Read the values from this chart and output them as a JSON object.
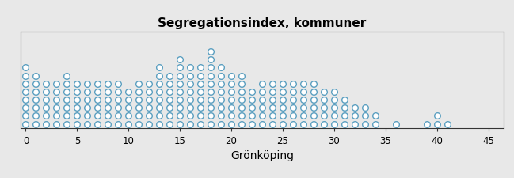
{
  "title": "Segregationsindex, kommuner",
  "xlabel": "Grönköping",
  "background_color": "#e8e8e8",
  "dot_facecolor": "#ffffff",
  "dot_edgecolor": "#5b9fc0",
  "xlim": [
    -0.5,
    46.5
  ],
  "ylim": [
    0,
    12
  ],
  "xticks": [
    0,
    5,
    10,
    15,
    20,
    25,
    30,
    35,
    40,
    45
  ],
  "dot_counts": {
    "0": 8,
    "1": 7,
    "2": 6,
    "3": 6,
    "4": 7,
    "5": 6,
    "6": 6,
    "7": 6,
    "8": 6,
    "9": 6,
    "10": 5,
    "11": 6,
    "12": 6,
    "13": 8,
    "14": 7,
    "15": 9,
    "16": 8,
    "17": 8,
    "18": 10,
    "19": 8,
    "20": 7,
    "21": 7,
    "22": 5,
    "23": 6,
    "24": 6,
    "25": 6,
    "26": 6,
    "27": 6,
    "28": 6,
    "29": 5,
    "30": 5,
    "31": 4,
    "32": 3,
    "33": 3,
    "34": 2,
    "36": 1,
    "39": 1,
    "40": 2,
    "41": 1
  }
}
